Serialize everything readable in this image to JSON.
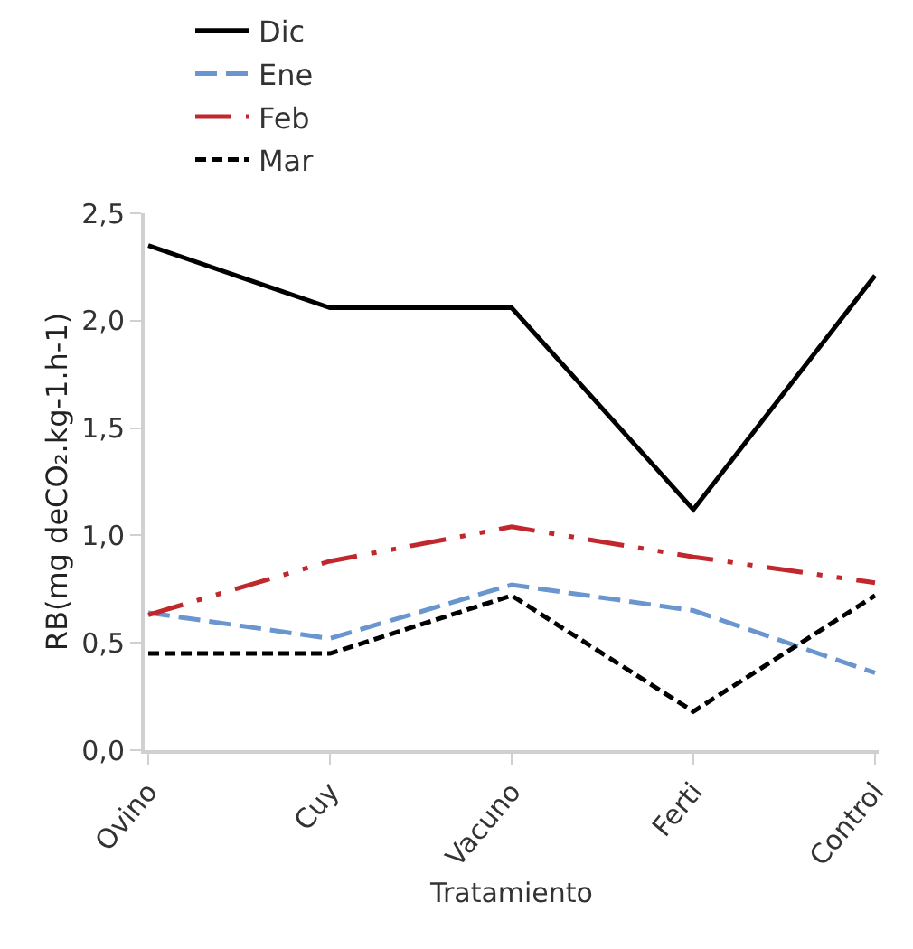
{
  "chart_data": {
    "type": "line",
    "xlabel": "Tratamiento",
    "ylabel": "RB(mg deCO₂.kg-1.h-1)",
    "categories": [
      "Ovino",
      "Cuy",
      "Vacuno",
      "Ferti",
      "Control"
    ],
    "series": [
      {
        "name": "Dic",
        "color": "#000000",
        "line_style": "solid",
        "values": [
          2.35,
          2.06,
          2.06,
          1.12,
          2.21
        ]
      },
      {
        "name": "Ene",
        "color": "#6a96cf",
        "line_style": "longdash",
        "values": [
          0.64,
          0.52,
          0.77,
          0.65,
          0.36
        ]
      },
      {
        "name": "Feb",
        "color": "#c0282d",
        "line_style": "dashdotdot",
        "values": [
          0.63,
          0.88,
          1.04,
          0.9,
          0.78
        ]
      },
      {
        "name": "Mar",
        "color": "#000000",
        "line_style": "dashed",
        "values": [
          0.45,
          0.45,
          0.72,
          0.18,
          0.72
        ]
      }
    ],
    "ylim": [
      0,
      2.5
    ],
    "yticks": [
      {
        "value": 0,
        "label": "0,0"
      },
      {
        "value": 0.5,
        "label": "0,5"
      },
      {
        "value": 1,
        "label": "1,0"
      },
      {
        "value": 1.5,
        "label": "1,5"
      },
      {
        "value": 2,
        "label": "2,0"
      },
      {
        "value": 2.5,
        "label": "2,5"
      }
    ],
    "grid": false,
    "legend": "top",
    "marker": "none"
  }
}
